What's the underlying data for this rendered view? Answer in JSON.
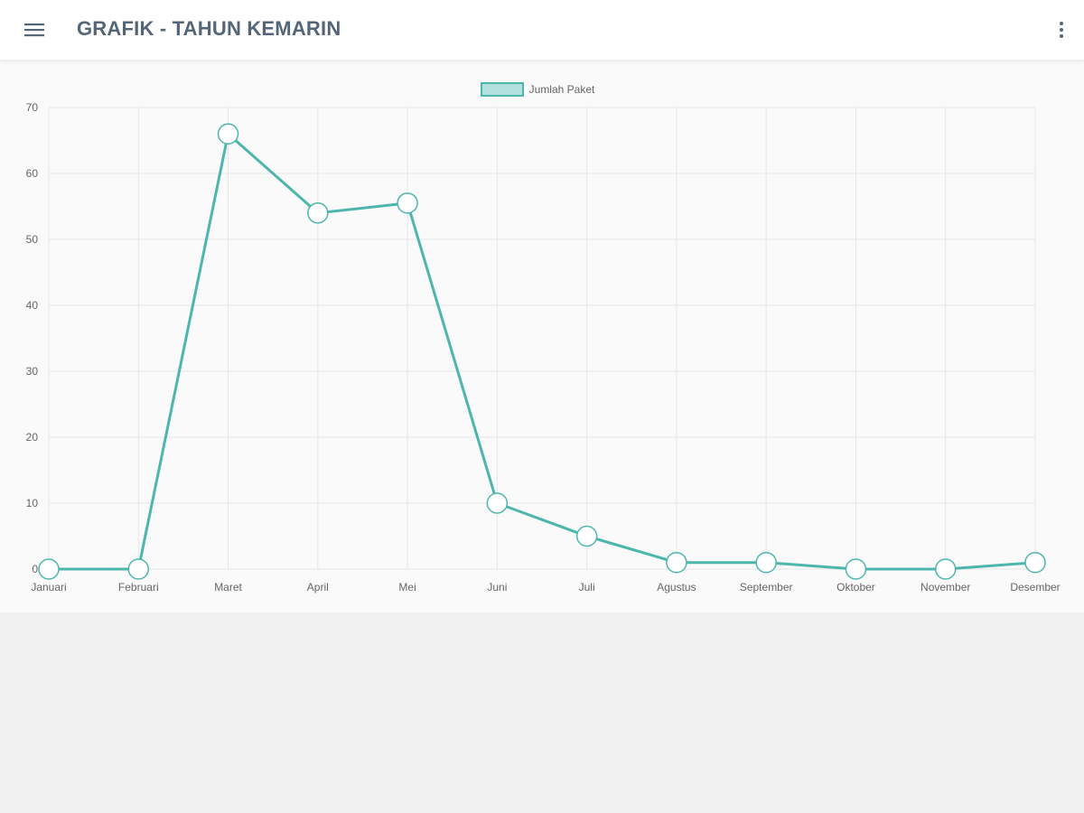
{
  "app_bar": {
    "title": "GRAFIK - TAHUN KEMARIN",
    "menu_icon": "hamburger-menu-icon",
    "more_icon": "more-vertical-icon"
  },
  "colors": {
    "line": "#4db6ac",
    "point_fill": "#ffffff",
    "grid": "#e6e6e6",
    "title": "#546578"
  },
  "chart_data": {
    "type": "line",
    "categories": [
      "Januari",
      "Februari",
      "Maret",
      "April",
      "Mei",
      "Juni",
      "Juli",
      "Agustus",
      "September",
      "Oktober",
      "November",
      "Desember"
    ],
    "series": [
      {
        "name": "Jumlah Paket",
        "values": [
          0,
          0,
          66,
          54,
          55.5,
          10,
          5,
          1,
          1,
          0,
          0,
          1
        ]
      }
    ],
    "title": "",
    "xlabel": "",
    "ylabel": "",
    "ylim": [
      0,
      70
    ],
    "yticks": [
      "0",
      "10",
      "20",
      "30",
      "40",
      "50",
      "60",
      "70"
    ],
    "grid": true,
    "legend_position": "top-center"
  }
}
